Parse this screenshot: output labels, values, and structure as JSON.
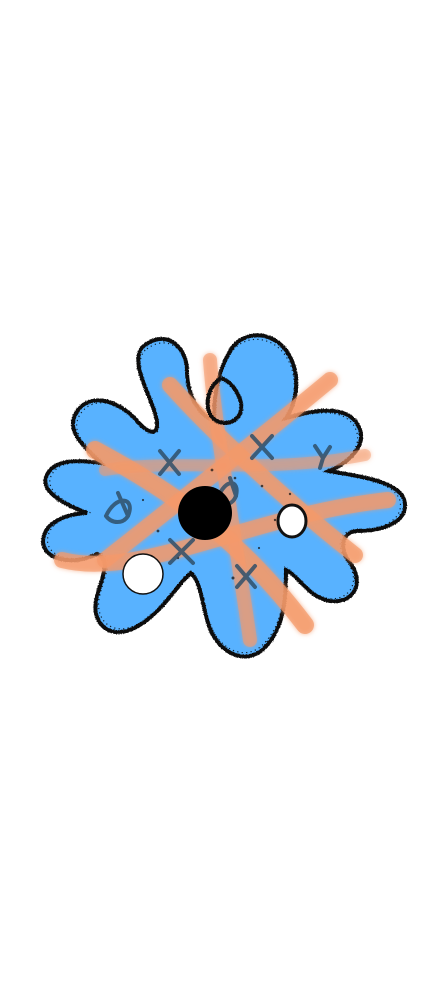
{
  "colors": {
    "background": "#ffffff",
    "body_fill": "#59b2ff",
    "outline": "#111111",
    "grid": "#f49a6a",
    "mark": "#2f4f68",
    "hole_black": "#000000",
    "hole_white": "#ffffff"
  },
  "game": {
    "title": "",
    "status": ""
  },
  "marks": [
    "x",
    "x",
    "y",
    "a",
    "a",
    "x",
    "x"
  ],
  "holes": [
    "black",
    "white",
    "white"
  ],
  "icons": {
    "creature": "amoeba-creature-icon",
    "top_loop": "loop-outline-icon",
    "black_hole": "black-hole-icon",
    "white_hole": "white-hole-icon",
    "mark_x": "x-mark-icon",
    "mark_a": "a-mark-icon",
    "mark_y": "y-mark-icon"
  }
}
